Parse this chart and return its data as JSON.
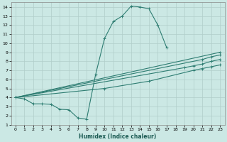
{
  "xlabel": "Humidex (Indice chaleur)",
  "bg_color": "#cbe8e4",
  "line_color": "#2e7d72",
  "grid_color": "#b0ceca",
  "xlim": [
    -0.5,
    23.5
  ],
  "ylim": [
    1,
    14.5
  ],
  "xticks": [
    0,
    1,
    2,
    3,
    4,
    5,
    6,
    7,
    8,
    9,
    10,
    11,
    12,
    13,
    14,
    15,
    16,
    17,
    18,
    19,
    20,
    21,
    22,
    23
  ],
  "yticks": [
    1,
    2,
    3,
    4,
    5,
    6,
    7,
    8,
    9,
    10,
    11,
    12,
    13,
    14
  ],
  "curve1_x": [
    0,
    1,
    2,
    3,
    4,
    5,
    6,
    7,
    8,
    9,
    10,
    11,
    12,
    13,
    14,
    15,
    16,
    17
  ],
  "curve1_y": [
    4.0,
    3.85,
    3.3,
    3.3,
    3.25,
    2.7,
    2.65,
    1.75,
    1.6,
    6.5,
    10.5,
    12.4,
    13.0,
    14.1,
    14.0,
    13.8,
    12.0,
    9.5
  ],
  "curve2_x": [
    0,
    23
  ],
  "curve2_y": [
    4.0,
    9.0
  ],
  "curve3_x": [
    0,
    21,
    22,
    23
  ],
  "curve3_y": [
    4.0,
    8.2,
    8.5,
    8.7
  ],
  "curve4_x": [
    0,
    19,
    20,
    21,
    22,
    23
  ],
  "curve4_y": [
    4.0,
    7.3,
    7.5,
    7.7,
    8.0,
    8.2
  ],
  "curve5_x": [
    0,
    10,
    15,
    20,
    21,
    22,
    23
  ],
  "curve5_y": [
    4.0,
    5.0,
    5.8,
    7.0,
    7.2,
    7.4,
    7.6
  ]
}
